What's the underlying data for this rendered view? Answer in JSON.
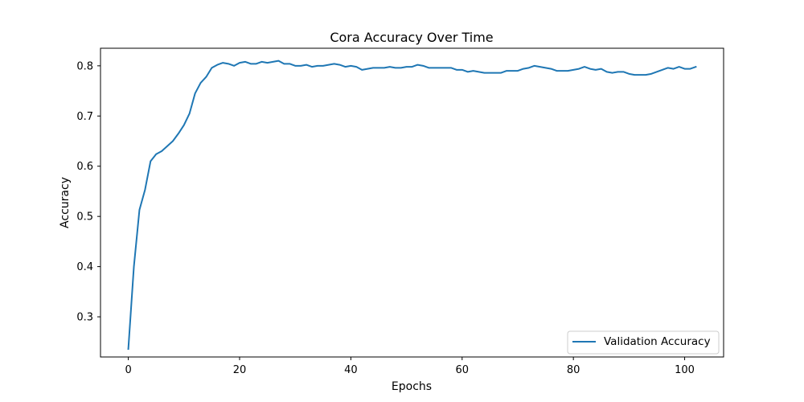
{
  "chart_data": {
    "type": "line",
    "title": "Cora Accuracy Over Time",
    "xlabel": "Epochs",
    "ylabel": "Accuracy",
    "xlim": [
      -5,
      107
    ],
    "ylim": [
      0.22,
      0.835
    ],
    "xticks": [
      0,
      20,
      40,
      60,
      80,
      100
    ],
    "yticks": [
      0.3,
      0.4,
      0.5,
      0.6,
      0.7,
      0.8
    ],
    "ytick_labels": [
      "0.3",
      "0.4",
      "0.5",
      "0.6",
      "0.7",
      "0.8"
    ],
    "grid": false,
    "legend_position": "lower-right",
    "series": [
      {
        "name": "Validation Accuracy",
        "color": "#1f77b4",
        "x": [
          0,
          1,
          2,
          3,
          4,
          5,
          6,
          7,
          8,
          9,
          10,
          11,
          12,
          13,
          14,
          15,
          16,
          17,
          18,
          19,
          20,
          21,
          22,
          23,
          24,
          25,
          26,
          27,
          28,
          29,
          30,
          31,
          32,
          33,
          34,
          35,
          36,
          37,
          38,
          39,
          40,
          41,
          42,
          43,
          44,
          45,
          46,
          47,
          48,
          49,
          50,
          51,
          52,
          53,
          54,
          55,
          56,
          57,
          58,
          59,
          60,
          61,
          62,
          63,
          64,
          65,
          66,
          67,
          68,
          69,
          70,
          71,
          72,
          73,
          74,
          75,
          76,
          77,
          78,
          79,
          80,
          81,
          82,
          83,
          84,
          85,
          86,
          87,
          88,
          89,
          90,
          91,
          92,
          93,
          94,
          95,
          96,
          97,
          98,
          99,
          100,
          101,
          102
        ],
        "values": [
          0.236,
          0.4,
          0.513,
          0.553,
          0.61,
          0.624,
          0.63,
          0.64,
          0.65,
          0.665,
          0.682,
          0.705,
          0.745,
          0.766,
          0.778,
          0.796,
          0.802,
          0.806,
          0.804,
          0.8,
          0.806,
          0.808,
          0.804,
          0.804,
          0.808,
          0.806,
          0.808,
          0.81,
          0.804,
          0.804,
          0.8,
          0.8,
          0.802,
          0.798,
          0.8,
          0.8,
          0.802,
          0.804,
          0.802,
          0.798,
          0.8,
          0.798,
          0.792,
          0.794,
          0.796,
          0.796,
          0.796,
          0.798,
          0.796,
          0.796,
          0.798,
          0.798,
          0.802,
          0.8,
          0.796,
          0.796,
          0.796,
          0.796,
          0.796,
          0.792,
          0.792,
          0.788,
          0.79,
          0.788,
          0.786,
          0.786,
          0.786,
          0.786,
          0.79,
          0.79,
          0.79,
          0.794,
          0.796,
          0.8,
          0.798,
          0.796,
          0.794,
          0.79,
          0.79,
          0.79,
          0.792,
          0.794,
          0.798,
          0.794,
          0.792,
          0.794,
          0.788,
          0.786,
          0.788,
          0.788,
          0.784,
          0.782,
          0.782,
          0.782,
          0.784,
          0.788,
          0.792,
          0.796,
          0.794,
          0.798,
          0.794,
          0.794,
          0.798
        ]
      }
    ]
  }
}
